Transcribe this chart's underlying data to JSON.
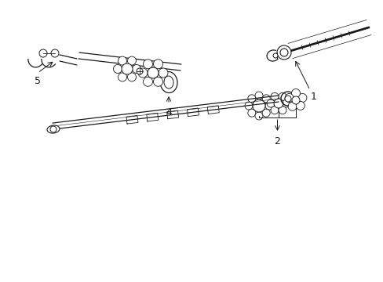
{
  "background_color": "#ffffff",
  "line_color": "#1a1a1a",
  "figsize": [
    4.89,
    3.6
  ],
  "dpi": 100,
  "label_fontsize": 9,
  "lw": 0.9
}
